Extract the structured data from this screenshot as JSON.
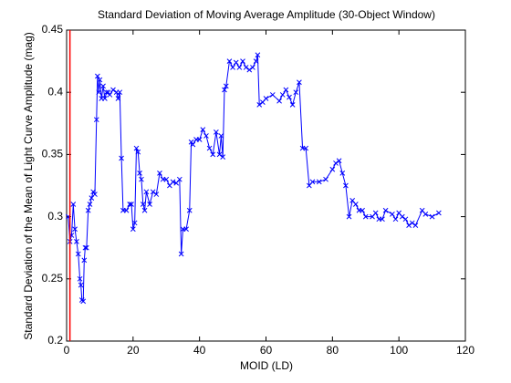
{
  "chart_data": {
    "type": "line",
    "title": "Standard Deviation of Moving Average Amplitude (30-Object Window)",
    "xlabel": "MOID (LD)",
    "ylabel": "Standard Deviation of the Mean of Light Curve Amplitude (mag)",
    "xlim": [
      0,
      120
    ],
    "xticks": [
      0,
      20,
      40,
      60,
      80,
      100,
      120
    ],
    "ylim": [
      0.2,
      0.45
    ],
    "yticks": [
      0.2,
      0.25,
      0.3,
      0.35,
      0.4,
      0.45
    ],
    "series": [
      {
        "color": "#0000ff",
        "marker": "x",
        "x": [
          0.5,
          1,
          1.5,
          2,
          2.5,
          3,
          3.5,
          4,
          4.3,
          4.6,
          5,
          5.3,
          5.6,
          6,
          6.5,
          7,
          7.5,
          8,
          8.5,
          9,
          9.3,
          9.7,
          10,
          10.5,
          11,
          11.5,
          12,
          12.5,
          13,
          14,
          15,
          15.5,
          16,
          16.5,
          17,
          18,
          19,
          19.5,
          20,
          20.5,
          21,
          21.5,
          22,
          22.5,
          23,
          23.5,
          24,
          25,
          26,
          27,
          28,
          29,
          30,
          31,
          32,
          33,
          34,
          34.5,
          35,
          36,
          37,
          37.5,
          38,
          39,
          40,
          41,
          42,
          43,
          44,
          45,
          46,
          46.5,
          47,
          47.5,
          48,
          49,
          50,
          51,
          52,
          53,
          54,
          55,
          56,
          57,
          57.5,
          58,
          59,
          60,
          62,
          64,
          65,
          66,
          67,
          68,
          69,
          70,
          71,
          72,
          73,
          74,
          76,
          78,
          80,
          81,
          82,
          83,
          84,
          85,
          86,
          87,
          88,
          89,
          90,
          92,
          93,
          94,
          95,
          96,
          98,
          99,
          100,
          101,
          102,
          103,
          104,
          105,
          107,
          108,
          110,
          112
        ],
        "values": [
          0.3,
          0.28,
          0.285,
          0.31,
          0.29,
          0.28,
          0.27,
          0.25,
          0.245,
          0.233,
          0.232,
          0.265,
          0.275,
          0.275,
          0.305,
          0.31,
          0.315,
          0.32,
          0.318,
          0.378,
          0.413,
          0.4,
          0.41,
          0.395,
          0.405,
          0.395,
          0.4,
          0.4,
          0.398,
          0.402,
          0.4,
          0.395,
          0.4,
          0.347,
          0.305,
          0.305,
          0.31,
          0.31,
          0.29,
          0.295,
          0.355,
          0.352,
          0.335,
          0.33,
          0.31,
          0.305,
          0.32,
          0.31,
          0.32,
          0.318,
          0.335,
          0.33,
          0.33,
          0.325,
          0.328,
          0.327,
          0.33,
          0.27,
          0.29,
          0.29,
          0.305,
          0.36,
          0.358,
          0.362,
          0.362,
          0.37,
          0.365,
          0.355,
          0.35,
          0.368,
          0.35,
          0.365,
          0.348,
          0.402,
          0.405,
          0.425,
          0.42,
          0.424,
          0.42,
          0.425,
          0.42,
          0.418,
          0.42,
          0.425,
          0.43,
          0.39,
          0.392,
          0.395,
          0.398,
          0.393,
          0.398,
          0.402,
          0.396,
          0.39,
          0.4,
          0.408,
          0.355,
          0.355,
          0.325,
          0.328,
          0.328,
          0.33,
          0.338,
          0.343,
          0.345,
          0.335,
          0.325,
          0.3,
          0.313,
          0.31,
          0.305,
          0.305,
          0.3,
          0.3,
          0.303,
          0.298,
          0.298,
          0.305,
          0.302,
          0.298,
          0.303,
          0.3,
          0.298,
          0.293,
          0.295,
          0.293,
          0.305,
          0.302,
          0.3,
          0.303
        ]
      },
      {
        "color": "#ff0000",
        "x": [
          1,
          1
        ],
        "values": [
          0.2,
          0.45
        ]
      }
    ]
  }
}
